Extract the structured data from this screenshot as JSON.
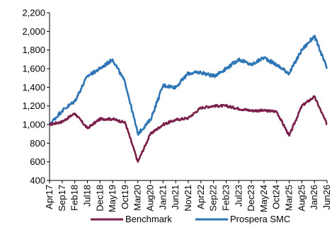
{
  "chart_data": {
    "type": "line",
    "title": "",
    "xlabel": "",
    "ylabel": "",
    "ylim": [
      400,
      2200
    ],
    "yticks": [
      400,
      600,
      800,
      1000,
      1200,
      1400,
      1600,
      1800,
      2000,
      2200
    ],
    "ytick_labels": [
      "400",
      "600",
      "800",
      "1,000",
      "1,200",
      "1,400",
      "1,600",
      "1,800",
      "2,000",
      "2,200"
    ],
    "xtick_labels": [
      "Apr17",
      "Sep17",
      "Feb18",
      "Jul18",
      "Dec18",
      "May19",
      "Oct19",
      "Mar20",
      "Aug20",
      "Jan21",
      "Jun21",
      "Nov21",
      "Apr22",
      "Sep22",
      "Feb23",
      "Jul23",
      "Dec23",
      "May24",
      "Oct24",
      "Mar25",
      "Aug25",
      "Jan26",
      "Jun26"
    ],
    "grid": false,
    "legend": "bottom",
    "series": [
      {
        "name": "Benchmark",
        "color": "#7B1F4B",
        "x": [
          "Apr17",
          "Sep17",
          "Feb18",
          "Jul18",
          "Dec18",
          "May19",
          "Oct19",
          "Mar20",
          "Aug20",
          "Jan21",
          "Jun21",
          "Nov21",
          "Apr22",
          "Sep22",
          "Feb23",
          "Jul23",
          "Dec23",
          "May24",
          "Oct24",
          "Mar25",
          "Aug25",
          "Jan26",
          "Jun26"
        ],
        "values": [
          1000,
          1030,
          1120,
          960,
          1060,
          1060,
          1020,
          600,
          900,
          1000,
          1050,
          1070,
          1180,
          1200,
          1200,
          1170,
          1150,
          1150,
          1140,
          880,
          1200,
          1300,
          1000
        ]
      },
      {
        "name": "Prospera SMC",
        "color": "#2E75B6",
        "x": [
          "Apr17",
          "Sep17",
          "Feb18",
          "Jul18",
          "Dec18",
          "May19",
          "Oct19",
          "Mar20",
          "Aug20",
          "Jan21",
          "Jun21",
          "Nov21",
          "Apr22",
          "Sep22",
          "Feb23",
          "Jul23",
          "Dec23",
          "May24",
          "Oct24",
          "Mar25",
          "Aug25",
          "Jan26",
          "Jun26"
        ],
        "values": [
          1000,
          1150,
          1250,
          1520,
          1600,
          1700,
          1450,
          900,
          1050,
          1420,
          1400,
          1550,
          1560,
          1520,
          1600,
          1700,
          1640,
          1720,
          1640,
          1550,
          1800,
          1950,
          1600
        ]
      }
    ]
  }
}
